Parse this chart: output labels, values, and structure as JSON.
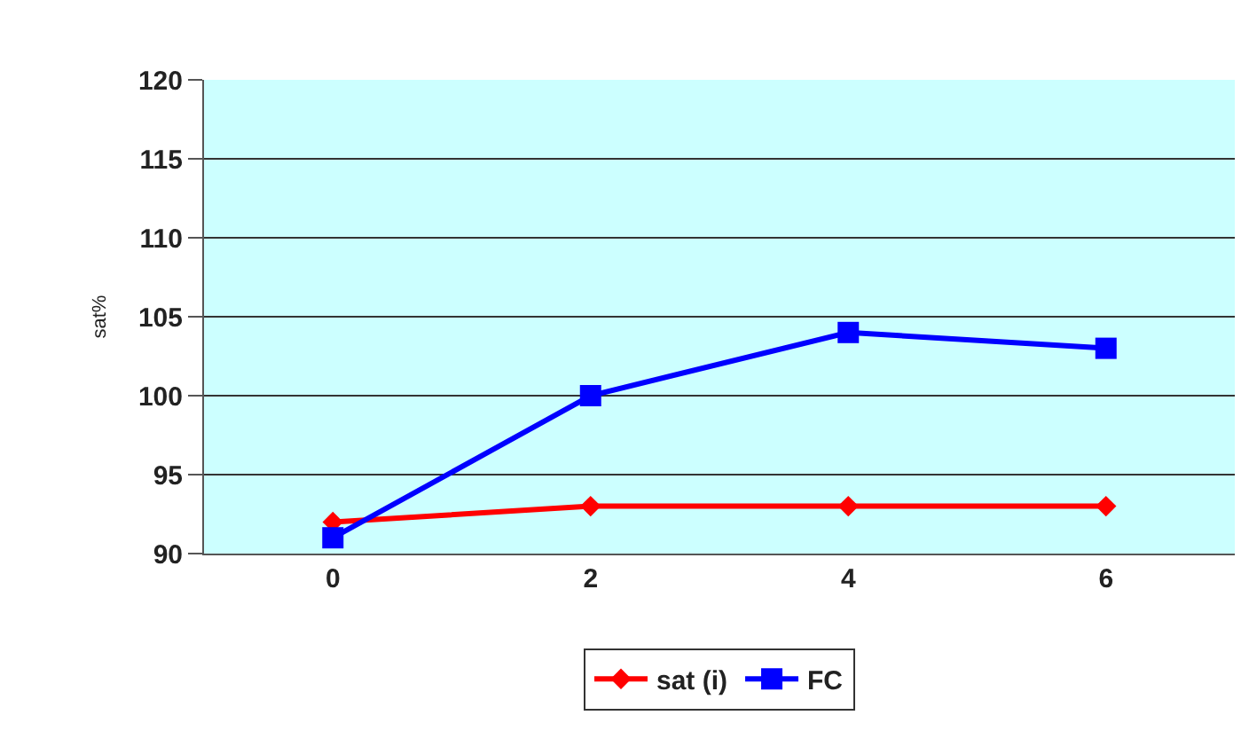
{
  "chart_data": {
    "type": "line",
    "ylabel": "sat%",
    "categories": [
      "0",
      "2",
      "4",
      "6"
    ],
    "series": [
      {
        "name": "sat (i)",
        "color": "#ff0000",
        "values": [
          92,
          93,
          93,
          93
        ],
        "marker": "diamond"
      },
      {
        "name": "FC",
        "color": "#0000ff",
        "values": [
          91,
          100,
          104,
          103
        ],
        "marker": "square"
      }
    ],
    "ylim": [
      90,
      120
    ],
    "yticks": [
      90,
      95,
      100,
      105,
      110,
      115,
      120
    ],
    "grid": "y",
    "legend": "bottom",
    "line_style": "solid"
  }
}
